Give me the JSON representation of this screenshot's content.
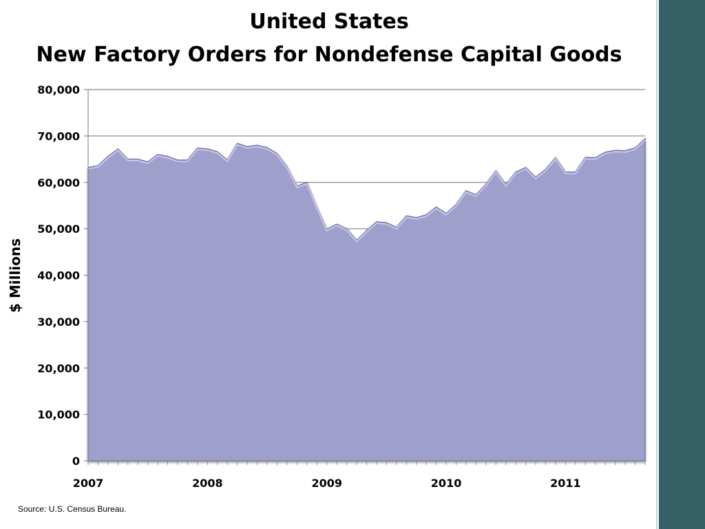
{
  "chart_data": {
    "type": "area",
    "title": "United States",
    "subtitle": "New Factory Orders for Nondefense Capital Goods",
    "xlabel": "",
    "ylabel": "$ Millions",
    "ylim": [
      0,
      80000
    ],
    "yticks": [
      "0",
      "10,000",
      "20,000",
      "30,000",
      "40,000",
      "50,000",
      "60,000",
      "70,000",
      "80,000"
    ],
    "xticks": [
      "2007",
      "2008",
      "2009",
      "2010",
      "2011"
    ],
    "grid": true,
    "x_start": "2007-01",
    "x_frequency": "monthly",
    "values": [
      63200,
      63600,
      65600,
      67200,
      65000,
      65000,
      64400,
      66000,
      65600,
      64800,
      64800,
      67400,
      67200,
      66600,
      64800,
      68400,
      67700,
      68000,
      67500,
      66200,
      63400,
      59200,
      60000,
      54700,
      49900,
      51000,
      50000,
      47500,
      49600,
      51500,
      51300,
      50300,
      52800,
      52400,
      53000,
      54700,
      53300,
      55200,
      58200,
      57300,
      59600,
      62500,
      59500,
      62200,
      63200,
      61100,
      62800,
      65300,
      62200,
      62200,
      65400,
      65300,
      66500,
      66900,
      66800,
      67400,
      69400
    ],
    "fill_color": "#9f9fcc",
    "source": "Source: U.S. Census Bureau."
  }
}
